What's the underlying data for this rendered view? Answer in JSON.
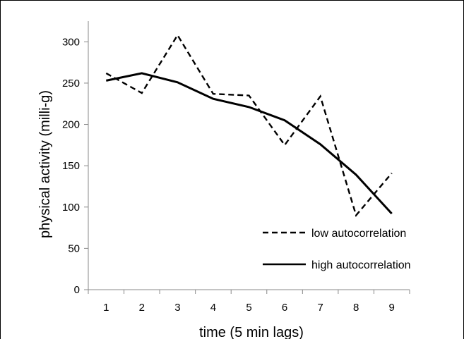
{
  "chart_data": {
    "type": "line",
    "title": "",
    "xlabel": "time (5 min lags)",
    "ylabel": "physical activity (milli-g)",
    "x": [
      1,
      2,
      3,
      4,
      5,
      6,
      7,
      8,
      9
    ],
    "x_tick_labels": [
      "1",
      "2",
      "3",
      "4",
      "5",
      "6",
      "7",
      "8",
      "9"
    ],
    "xlim": [
      0.5,
      9.5
    ],
    "ylim": [
      0,
      325
    ],
    "y_ticks": [
      0,
      50,
      100,
      150,
      200,
      250,
      300
    ],
    "grid": false,
    "legend_placement": "bottom-right",
    "series": [
      {
        "name": "low autocorrelation",
        "style": "dashed",
        "color": "#000000",
        "values": [
          262,
          238,
          308,
          237,
          235,
          175,
          234,
          90,
          141
        ]
      },
      {
        "name": "high autocorrelation",
        "style": "solid",
        "color": "#000000",
        "values": [
          253,
          262,
          251,
          231,
          221,
          205,
          176,
          139,
          92
        ]
      }
    ]
  }
}
